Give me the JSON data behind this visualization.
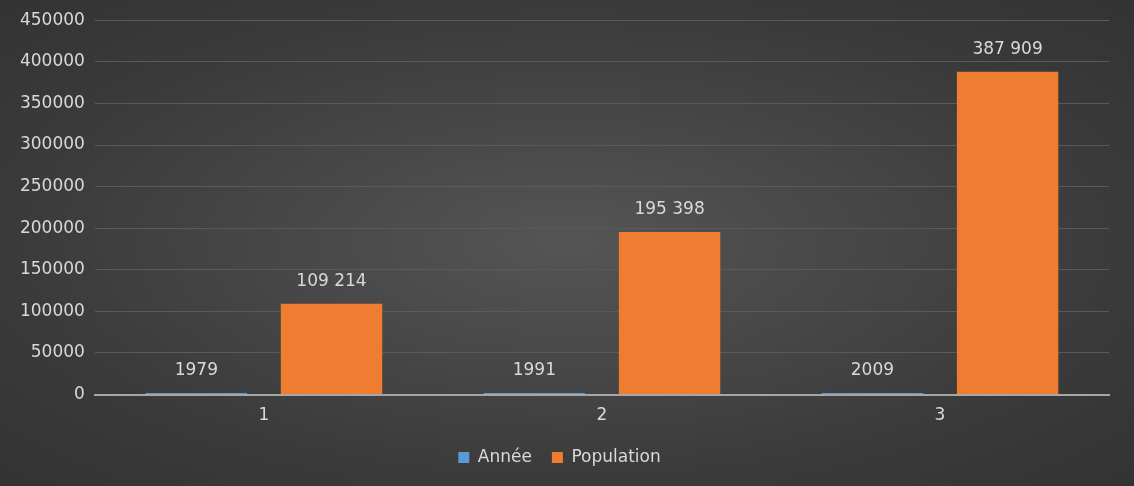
{
  "chart_data": {
    "type": "bar",
    "categories": [
      "1",
      "2",
      "3"
    ],
    "series": [
      {
        "name": "Année",
        "color": "#5b9bd5",
        "values": [
          1979,
          1991,
          2009
        ],
        "value_labels": [
          "1979",
          "1991",
          "2009"
        ]
      },
      {
        "name": "Population",
        "color": "#ee7d31",
        "values": [
          109214,
          195398,
          387909
        ],
        "value_labels": [
          "109 214",
          "195 398",
          "387 909"
        ]
      }
    ],
    "ylim": [
      0,
      450000
    ],
    "yticks": [
      0,
      50000,
      100000,
      150000,
      200000,
      250000,
      300000,
      350000,
      400000,
      450000
    ],
    "grid": "y",
    "legend": "bottom"
  }
}
